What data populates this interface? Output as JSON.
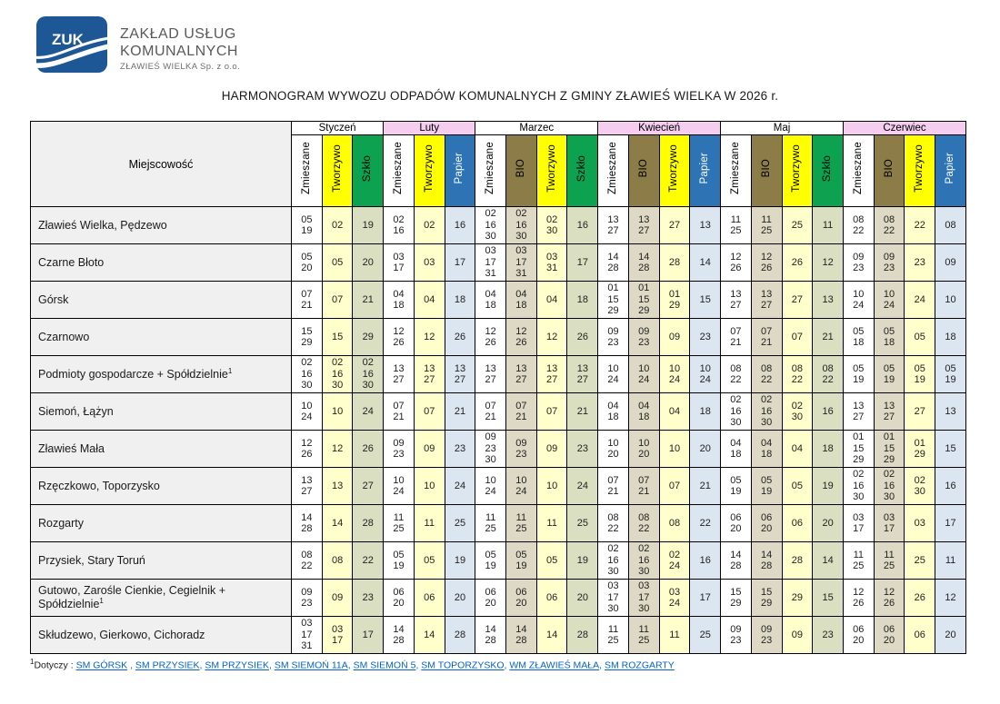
{
  "logo": {
    "badge_text": "ZUK",
    "badge_color": "#1d5795",
    "company_line1": "ZAKŁAD USŁUG",
    "company_line2": "KOMUNALNYCH",
    "company_line3": "ZŁAWIEŚ WIELKA Sp. z o.o."
  },
  "title": "HARMONOGRAM WYWOZU ODPADÓW KOMUNALNYCH Z GMINY ZŁAWIEŚ WIELKA W 2026 r.",
  "table": {
    "corner_header": "Miejscowość",
    "waste_types": {
      "Zmieszane": {
        "header_bg": "#ffffff",
        "header_text": "#000000",
        "cell_bg": "#ffffff"
      },
      "Tworzywo": {
        "header_bg": "#ffff00",
        "header_text": "#000000",
        "cell_bg": "#ffffcb"
      },
      "Szkło": {
        "header_bg": "#0ca24f",
        "header_text": "#000000",
        "cell_bg": "#d9dfc0"
      },
      "Papier": {
        "header_bg": "#2e74b5",
        "header_text": "#ffffff",
        "cell_bg": "#dce6f1"
      },
      "BIO": {
        "header_bg": "#8c7c47",
        "header_text": "#000000",
        "cell_bg": "#ddd9c4"
      }
    },
    "months": [
      {
        "label": "Styczeń",
        "header_bg": "#ffffff",
        "columns": [
          "Zmieszane",
          "Tworzywo",
          "Szkło"
        ]
      },
      {
        "label": "Luty",
        "header_bg": "#f4cdef",
        "columns": [
          "Zmieszane",
          "Tworzywo",
          "Papier"
        ]
      },
      {
        "label": "Marzec",
        "header_bg": "#ffffff",
        "columns": [
          "Zmieszane",
          "BIO",
          "Tworzywo",
          "Szkło"
        ]
      },
      {
        "label": "Kwiecień",
        "header_bg": "#f4cdef",
        "columns": [
          "Zmieszane",
          "BIO",
          "Tworzywo",
          "Papier"
        ]
      },
      {
        "label": "Maj",
        "header_bg": "#ffffff",
        "columns": [
          "Zmieszane",
          "BIO",
          "Tworzywo",
          "Szkło"
        ]
      },
      {
        "label": "Czerwiec",
        "header_bg": "#f4cdef",
        "columns": [
          "Zmieszane",
          "BIO",
          "Tworzywo",
          "Papier"
        ]
      }
    ],
    "rows": [
      {
        "name": "Zławieś Wielka, Pędzewo",
        "sup": "",
        "cells": [
          "05\n19",
          "02",
          "19",
          "02\n16",
          "02",
          "16",
          "02\n16\n30",
          "02\n16\n30",
          "02\n30",
          "16",
          "13\n27",
          "13\n27",
          "27",
          "13",
          "11\n25",
          "11\n25",
          "25",
          "11",
          "08\n22",
          "08\n22",
          "22",
          "08"
        ]
      },
      {
        "name": "Czarne Błoto",
        "sup": "",
        "cells": [
          "05\n20",
          "05",
          "20",
          "03\n17",
          "03",
          "17",
          "03\n17\n31",
          "03\n17\n31",
          "03\n31",
          "17",
          "14\n28",
          "14\n28",
          "28",
          "14",
          "12\n26",
          "12\n26",
          "26",
          "12",
          "09\n23",
          "09\n23",
          "23",
          "09"
        ]
      },
      {
        "name": "Górsk",
        "sup": "",
        "cells": [
          "07\n21",
          "07",
          "21",
          "04\n18",
          "04",
          "18",
          "04\n18",
          "04\n18",
          "04",
          "18",
          "01\n15\n29",
          "01\n15\n29",
          "01\n29",
          "15",
          "13\n27",
          "13\n27",
          "27",
          "13",
          "10\n24",
          "10\n24",
          "24",
          "10"
        ]
      },
      {
        "name": "Czarnowo",
        "sup": "",
        "cells": [
          "15\n29",
          "15",
          "29",
          "12\n26",
          "12",
          "26",
          "12\n26",
          "12\n26",
          "12",
          "26",
          "09\n23",
          "09\n23",
          "09",
          "23",
          "07\n21",
          "07\n21",
          "07",
          "21",
          "05\n18",
          "05\n18",
          "05",
          "18"
        ]
      },
      {
        "name": "Podmioty gospodarcze + Spółdzielnie",
        "sup": "1",
        "cells": [
          "02\n16\n30",
          "02\n16\n30",
          "02\n16\n30",
          "13\n27",
          "13\n27",
          "13\n27",
          "13\n27",
          "13\n27",
          "13\n27",
          "13\n27",
          "10\n24",
          "10\n24",
          "10\n24",
          "10\n24",
          "08\n22",
          "08\n22",
          "08\n22",
          "08\n22",
          "05\n19",
          "05\n19",
          "05\n19",
          "05\n19"
        ]
      },
      {
        "name": "Siemoń, Łążyn",
        "sup": "",
        "cells": [
          "10\n24",
          "10",
          "24",
          "07\n21",
          "07",
          "21",
          "07\n21",
          "07\n21",
          "07",
          "21",
          "04\n18",
          "04\n18",
          "04",
          "18",
          "02\n16\n30",
          "02\n16\n30",
          "02\n30",
          "16",
          "13\n27",
          "13\n27",
          "27",
          "13"
        ]
      },
      {
        "name": "Zławieś Mała",
        "sup": "",
        "cells": [
          "12\n26",
          "12",
          "26",
          "09\n23",
          "09",
          "23",
          "09\n23\n30",
          "09\n23",
          "09",
          "23",
          "10\n20",
          "10\n20",
          "10",
          "20",
          "04\n18",
          "04\n18",
          "04",
          "18",
          "01\n15\n29",
          "01\n15\n29",
          "01\n29",
          "15"
        ]
      },
      {
        "name": "Rzęczkowo, Toporzysko",
        "sup": "",
        "cells": [
          "13\n27",
          "13",
          "27",
          "10\n24",
          "10",
          "24",
          "10\n24",
          "10\n24",
          "10",
          "24",
          "07\n21",
          "07\n21",
          "07",
          "21",
          "05\n19",
          "05\n19",
          "05",
          "19",
          "02\n16\n30",
          "02\n16\n30",
          "02\n30",
          "16"
        ]
      },
      {
        "name": "Rozgarty",
        "sup": "",
        "cells": [
          "14\n28",
          "14",
          "28",
          "11\n25",
          "11",
          "25",
          "11\n25",
          "11\n25",
          "11",
          "25",
          "08\n22",
          "08\n22",
          "08",
          "22",
          "06\n20",
          "06\n20",
          "06",
          "20",
          "03\n17",
          "03\n17",
          "03",
          "17"
        ]
      },
      {
        "name": "Przysiek, Stary Toruń",
        "sup": "",
        "cells": [
          "08\n22",
          "08",
          "22",
          "05\n19",
          "05",
          "19",
          "05\n19",
          "05\n19",
          "05",
          "19",
          "02\n16\n30",
          "02\n16\n30",
          "02\n24",
          "16",
          "14\n28",
          "14\n28",
          "28",
          "14",
          "11\n25",
          "11\n25",
          "25",
          "11"
        ]
      },
      {
        "name": "Gutowo, Zarośle Cienkie, Cegielnik + Spółdzielnie",
        "sup": "1",
        "cells": [
          "09\n23",
          "09",
          "23",
          "06\n20",
          "06",
          "20",
          "06\n20",
          "06\n20",
          "06",
          "20",
          "03\n17\n30",
          "03\n17\n30",
          "03\n24",
          "17",
          "15\n29",
          "15\n29",
          "29",
          "15",
          "12\n26",
          "12\n26",
          "26",
          "12"
        ]
      },
      {
        "name": "Skłudzewo, Gierkowo, Cichoradz",
        "sup": "",
        "cells": [
          "03\n17\n31",
          "03\n17",
          "17",
          "14\n28",
          "14",
          "28",
          "14\n28",
          "14\n28",
          "14",
          "28",
          "11\n25",
          "11\n25",
          "11",
          "25",
          "09\n23",
          "09\n23",
          "09",
          "23",
          "06\n20",
          "06\n20",
          "06",
          "20"
        ]
      }
    ]
  },
  "footnote": {
    "marker": "1",
    "label": "Dotyczy :",
    "link_color": "#0563c1",
    "links": [
      "SM GÓRSK",
      "SM PRZYSIEK",
      "SM PRZYSIEK",
      "SM SIEMOŃ 11A",
      "SM SIEMOŃ 5",
      "SM TOPORZYSKO",
      "WM ZŁAWIEŚ MAŁA",
      "SM ROZGARTY"
    ]
  }
}
